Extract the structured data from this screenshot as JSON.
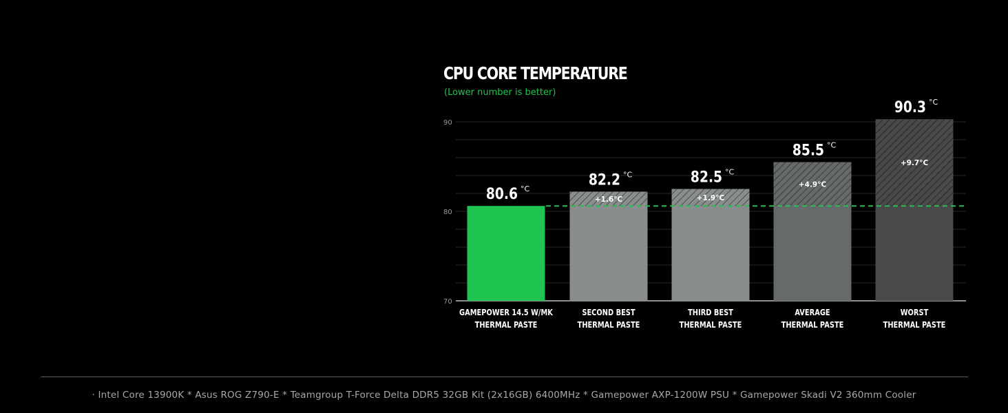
{
  "chart_data": {
    "type": "bar",
    "title": "CPU CORE TEMPERATURE",
    "subtitle": "(Lower number is better)",
    "categories": [
      [
        "GAMEPOWER 14.5 W/MK",
        "THERMAL PASTE"
      ],
      [
        "SECOND BEST",
        "THERMAL PASTE"
      ],
      [
        "THIRD BEST",
        "THERMAL PASTE"
      ],
      [
        "AVERAGE",
        "THERMAL PASTE"
      ],
      [
        "WORST",
        "THERMAL PASTE"
      ]
    ],
    "values": [
      80.6,
      82.2,
      82.5,
      85.5,
      90.3
    ],
    "value_labels": [
      "80.6",
      "82.2",
      "82.5",
      "85.5",
      "90.3"
    ],
    "value_unit": "°C",
    "differences": [
      "",
      "+1.6°C",
      "+1.9°C",
      "+4.9°C",
      "+9.7°C"
    ],
    "baseline_value": 80.6,
    "yticks": [
      "90",
      "80",
      "70"
    ],
    "ylim": [
      70,
      90
    ],
    "xlabel": "",
    "ylabel": "",
    "grid": true,
    "bar_colors": [
      "#1fc450",
      "#8a8d8e",
      "#8a8d8e",
      "#676a6a",
      "#474a49"
    ],
    "accent_color": "#1fc450"
  },
  "footer": {
    "text": "· Intel Core 13900K * Asus ROG Z790-E * Teamgroup T-Force Delta DDR5 32GB Kit (2x16GB) 6400MHz * Gamepower AXP-1200W PSU * Gamepower Skadi V2 360mm Cooler"
  }
}
